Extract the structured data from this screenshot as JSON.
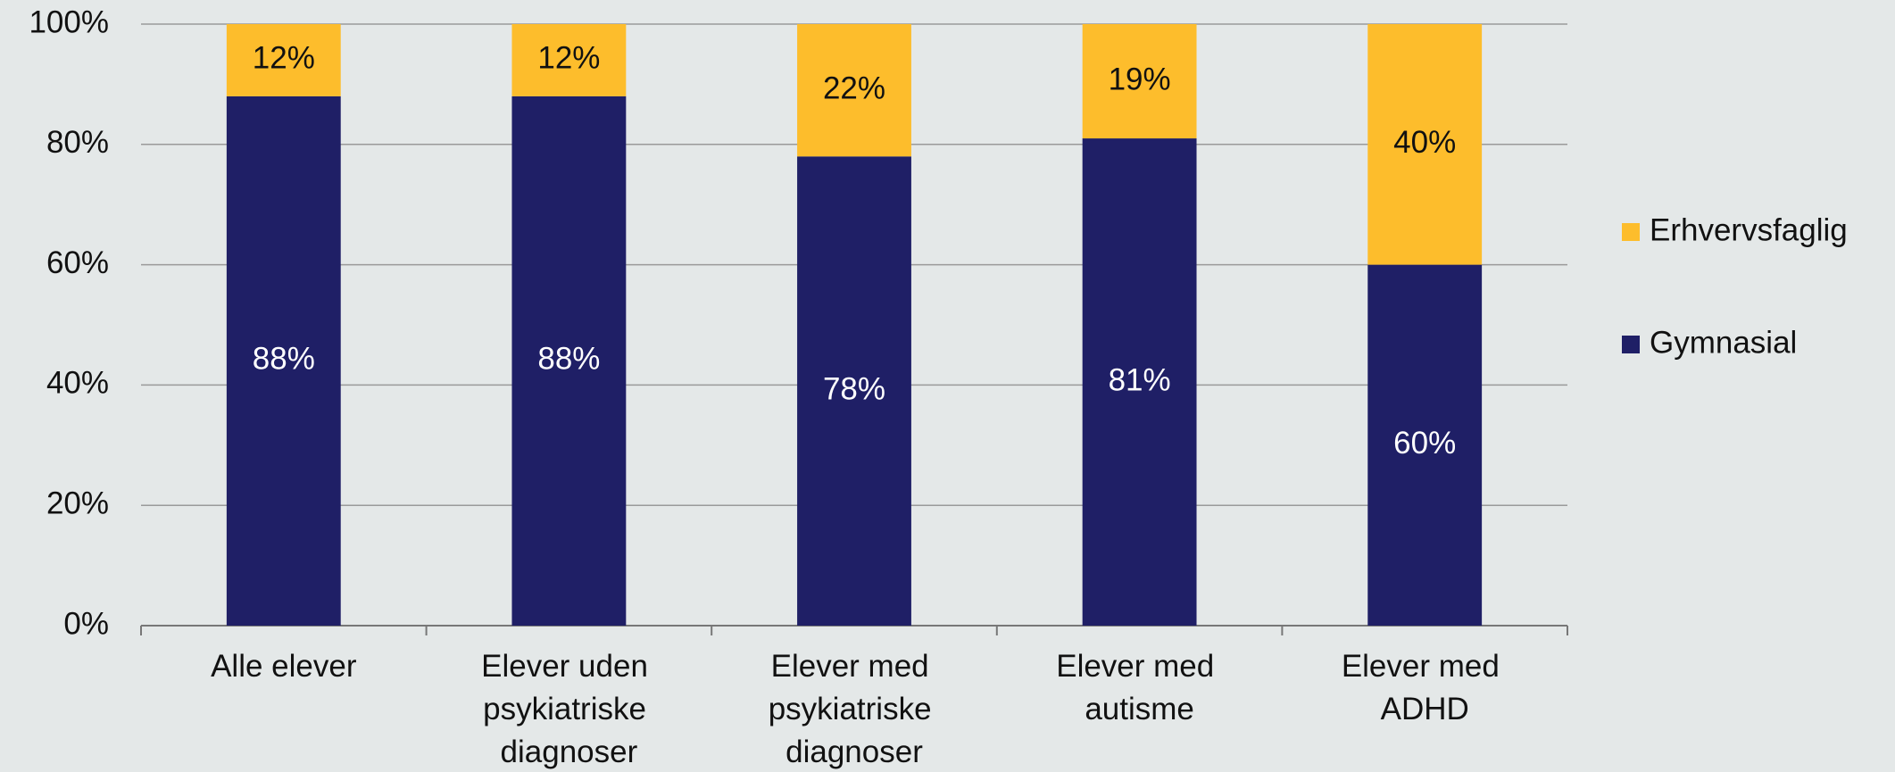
{
  "chart_data": {
    "type": "bar",
    "stacked": true,
    "categories": [
      "Alle elever",
      "Elever uden psykiatriske diagnoser",
      "Elever med psykiatriske diagnoser",
      "Elever med autisme",
      "Elever med ADHD"
    ],
    "series": [
      {
        "name": "Gymnasial",
        "color": "#1f1f66",
        "values": [
          88,
          88,
          78,
          81,
          60
        ],
        "value_labels": [
          "88%",
          "88%",
          "78%",
          "81%",
          "60%"
        ]
      },
      {
        "name": "Erhvervsfaglig",
        "color": "#fdbd2c",
        "values": [
          12,
          12,
          22,
          19,
          40
        ],
        "value_labels": [
          "12%",
          "12%",
          "22%",
          "19%",
          "40%"
        ]
      }
    ],
    "ylim": [
      0,
      100
    ],
    "yticks": [
      {
        "value": 0,
        "label": "0%"
      },
      {
        "value": 20,
        "label": "20%"
      },
      {
        "value": 40,
        "label": "40%"
      },
      {
        "value": 60,
        "label": "60%"
      },
      {
        "value": 80,
        "label": "80%"
      },
      {
        "value": 100,
        "label": "100%"
      }
    ],
    "grid": true,
    "legend": "right"
  }
}
